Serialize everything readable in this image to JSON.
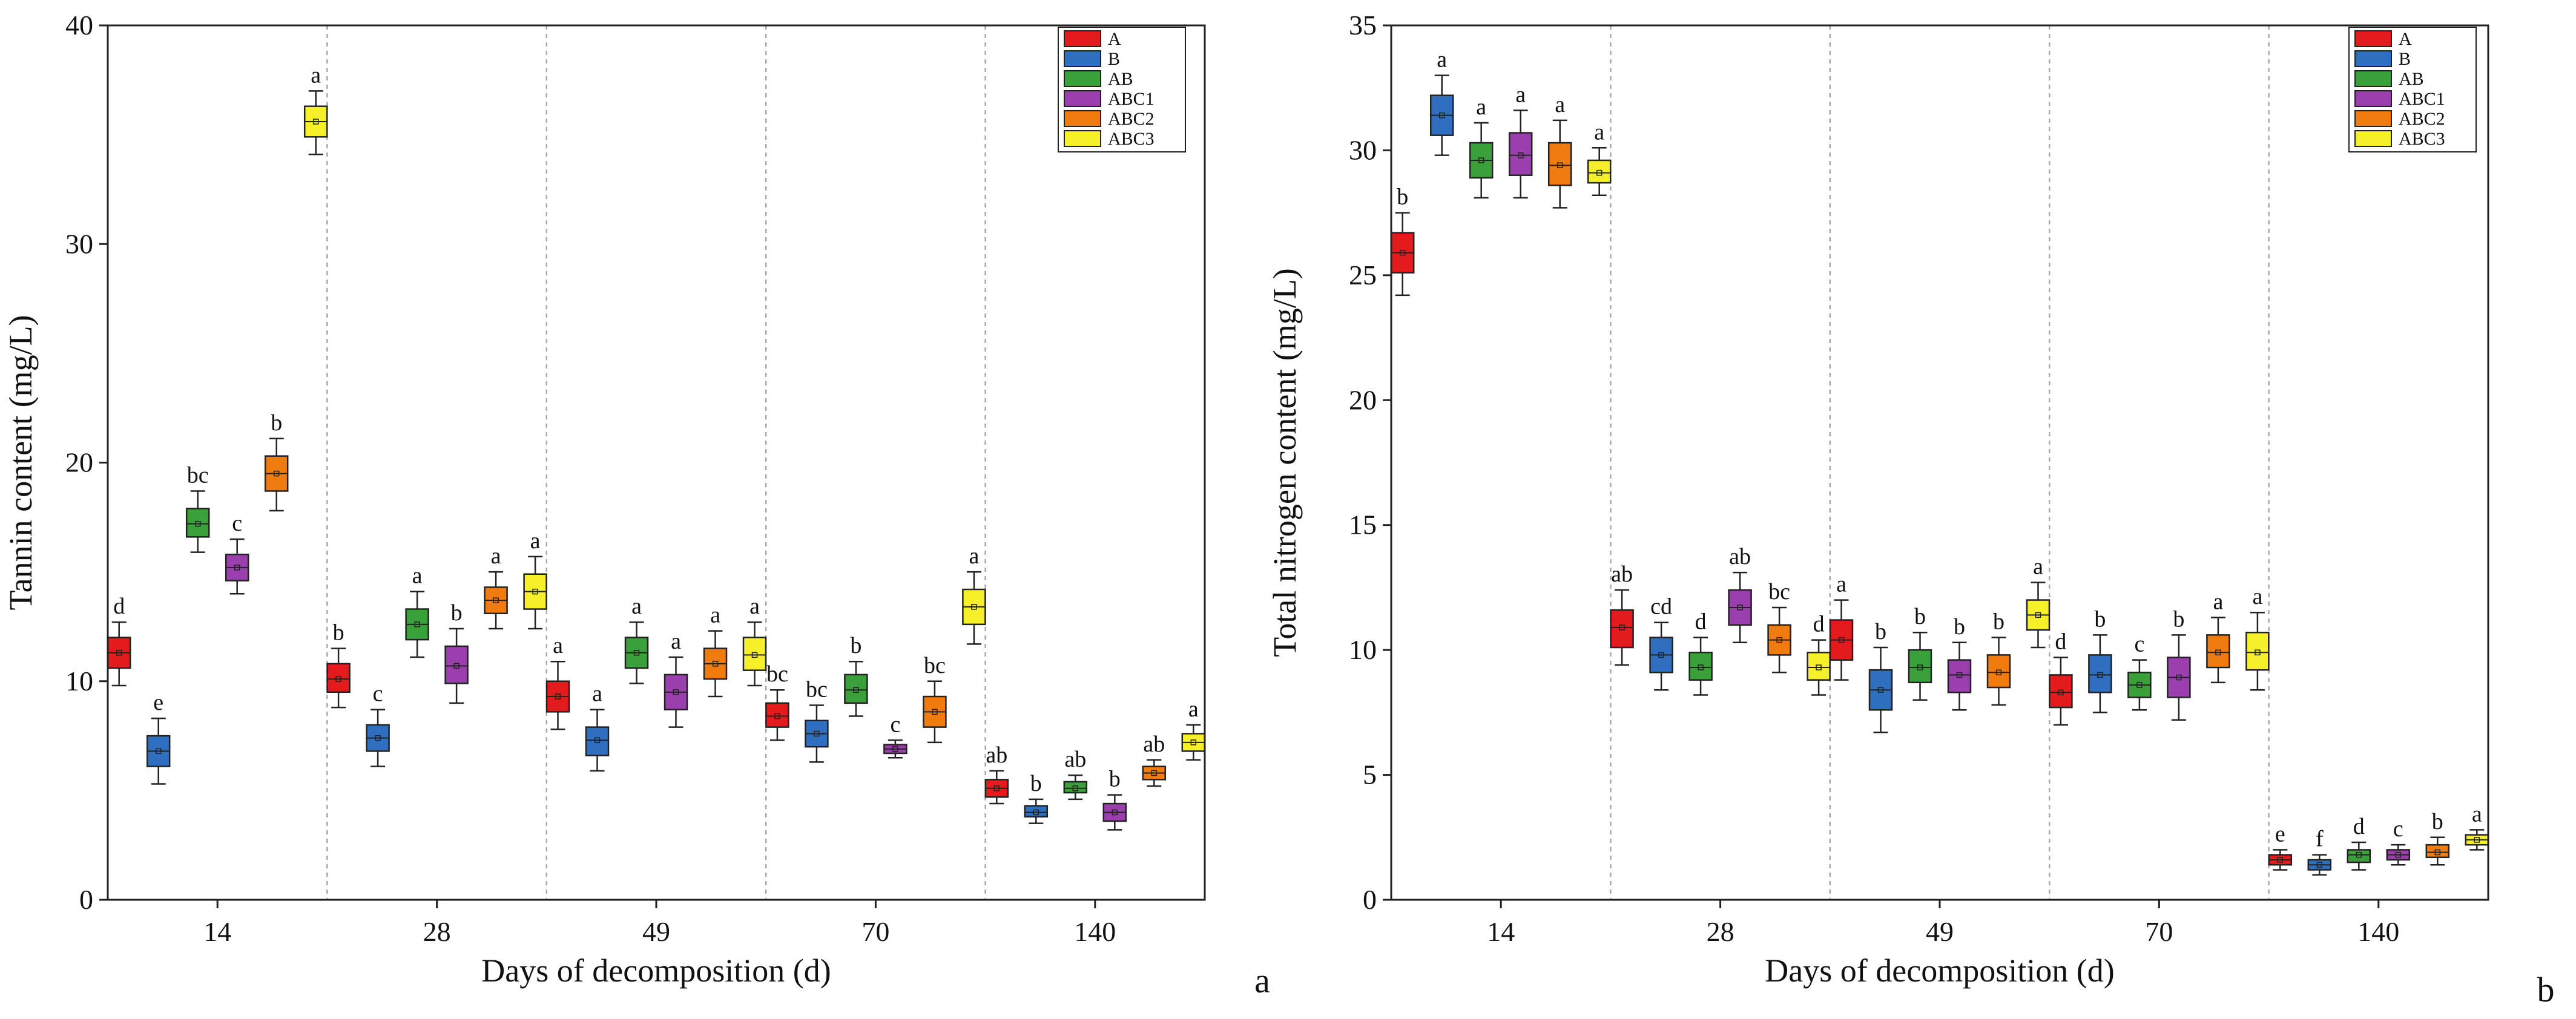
{
  "colors": {
    "A": "#e41a1c",
    "B": "#2f6fc0",
    "AB": "#3aa13a",
    "ABC1": "#9b3fae",
    "ABC2": "#f27b0f",
    "ABC3": "#f5f02a",
    "axis": "#222222",
    "separator": "#a8a8a8"
  },
  "chart_data": [
    {
      "type": "box",
      "panel_label": "a",
      "title": "",
      "xlabel": "Days of decomposition (d)",
      "ylabel": "Tannin content (mg/L)",
      "ylim": [
        0,
        40
      ],
      "yticks": [
        0,
        10,
        20,
        30,
        40
      ],
      "categories": [
        "14",
        "28",
        "49",
        "70",
        "140"
      ],
      "legend_position": "top-right",
      "series": [
        {
          "name": "A",
          "boxes": [
            {
              "whisker_low": 9.8,
              "q1": 10.6,
              "median": 11.3,
              "q3": 12.0,
              "whisker_high": 12.7,
              "label": "d"
            },
            {
              "whisker_low": 8.8,
              "q1": 9.5,
              "median": 10.1,
              "q3": 10.8,
              "whisker_high": 11.5,
              "label": "b"
            },
            {
              "whisker_low": 7.8,
              "q1": 8.6,
              "median": 9.3,
              "q3": 10.0,
              "whisker_high": 10.9,
              "label": "a"
            },
            {
              "whisker_low": 7.3,
              "q1": 7.9,
              "median": 8.4,
              "q3": 9.0,
              "whisker_high": 9.6,
              "label": "bc"
            },
            {
              "whisker_low": 4.4,
              "q1": 4.7,
              "median": 5.1,
              "q3": 5.5,
              "whisker_high": 5.9,
              "label": "ab"
            }
          ]
        },
        {
          "name": "B",
          "boxes": [
            {
              "whisker_low": 5.3,
              "q1": 6.1,
              "median": 6.8,
              "q3": 7.5,
              "whisker_high": 8.3,
              "label": "e"
            },
            {
              "whisker_low": 6.1,
              "q1": 6.8,
              "median": 7.4,
              "q3": 8.0,
              "whisker_high": 8.7,
              "label": "c"
            },
            {
              "whisker_low": 5.9,
              "q1": 6.6,
              "median": 7.3,
              "q3": 7.9,
              "whisker_high": 8.7,
              "label": "a"
            },
            {
              "whisker_low": 6.3,
              "q1": 7.0,
              "median": 7.6,
              "q3": 8.2,
              "whisker_high": 8.9,
              "label": "bc"
            },
            {
              "whisker_low": 3.5,
              "q1": 3.8,
              "median": 4.0,
              "q3": 4.3,
              "whisker_high": 4.6,
              "label": "b"
            }
          ]
        },
        {
          "name": "AB",
          "boxes": [
            {
              "whisker_low": 15.9,
              "q1": 16.6,
              "median": 17.2,
              "q3": 17.9,
              "whisker_high": 18.7,
              "label": "bc"
            },
            {
              "whisker_low": 11.1,
              "q1": 11.9,
              "median": 12.6,
              "q3": 13.3,
              "whisker_high": 14.1,
              "label": "a"
            },
            {
              "whisker_low": 9.9,
              "q1": 10.6,
              "median": 11.3,
              "q3": 12.0,
              "whisker_high": 12.7,
              "label": "a"
            },
            {
              "whisker_low": 8.4,
              "q1": 9.0,
              "median": 9.6,
              "q3": 10.3,
              "whisker_high": 10.9,
              "label": "b"
            },
            {
              "whisker_low": 4.6,
              "q1": 4.9,
              "median": 5.1,
              "q3": 5.4,
              "whisker_high": 5.7,
              "label": "ab"
            }
          ]
        },
        {
          "name": "ABC1",
          "boxes": [
            {
              "whisker_low": 14.0,
              "q1": 14.6,
              "median": 15.2,
              "q3": 15.8,
              "whisker_high": 16.5,
              "label": "c"
            },
            {
              "whisker_low": 9.0,
              "q1": 9.9,
              "median": 10.7,
              "q3": 11.6,
              "whisker_high": 12.4,
              "label": "b"
            },
            {
              "whisker_low": 7.9,
              "q1": 8.7,
              "median": 9.5,
              "q3": 10.3,
              "whisker_high": 11.1,
              "label": "a"
            },
            {
              "whisker_low": 6.5,
              "q1": 6.7,
              "median": 6.9,
              "q3": 7.1,
              "whisker_high": 7.3,
              "label": "c"
            },
            {
              "whisker_low": 3.2,
              "q1": 3.6,
              "median": 4.0,
              "q3": 4.4,
              "whisker_high": 4.8,
              "label": "b"
            }
          ]
        },
        {
          "name": "ABC2",
          "boxes": [
            {
              "whisker_low": 17.8,
              "q1": 18.7,
              "median": 19.5,
              "q3": 20.3,
              "whisker_high": 21.1,
              "label": "b"
            },
            {
              "whisker_low": 12.4,
              "q1": 13.1,
              "median": 13.7,
              "q3": 14.3,
              "whisker_high": 15.0,
              "label": "a"
            },
            {
              "whisker_low": 9.3,
              "q1": 10.1,
              "median": 10.8,
              "q3": 11.5,
              "whisker_high": 12.3,
              "label": "a"
            },
            {
              "whisker_low": 7.2,
              "q1": 7.9,
              "median": 8.6,
              "q3": 9.3,
              "whisker_high": 10.0,
              "label": "bc"
            },
            {
              "whisker_low": 5.2,
              "q1": 5.5,
              "median": 5.8,
              "q3": 6.1,
              "whisker_high": 6.4,
              "label": "ab"
            }
          ]
        },
        {
          "name": "ABC3",
          "boxes": [
            {
              "whisker_low": 34.1,
              "q1": 34.9,
              "median": 35.6,
              "q3": 36.3,
              "whisker_high": 37.0,
              "label": "a"
            },
            {
              "whisker_low": 12.4,
              "q1": 13.3,
              "median": 14.1,
              "q3": 14.9,
              "whisker_high": 15.7,
              "label": "a"
            },
            {
              "whisker_low": 9.8,
              "q1": 10.5,
              "median": 11.2,
              "q3": 12.0,
              "whisker_high": 12.7,
              "label": "a"
            },
            {
              "whisker_low": 11.7,
              "q1": 12.6,
              "median": 13.4,
              "q3": 14.2,
              "whisker_high": 15.0,
              "label": "a"
            },
            {
              "whisker_low": 6.4,
              "q1": 6.8,
              "median": 7.2,
              "q3": 7.6,
              "whisker_high": 8.0,
              "label": "a"
            }
          ]
        }
      ]
    },
    {
      "type": "box",
      "panel_label": "b",
      "title": "",
      "xlabel": "Days of decomposition (d)",
      "ylabel": "Total nitrogen content (mg/L)",
      "ylim": [
        0,
        35
      ],
      "yticks": [
        0,
        5,
        10,
        15,
        20,
        25,
        30,
        35
      ],
      "categories": [
        "14",
        "28",
        "49",
        "70",
        "140"
      ],
      "legend_position": "top-right",
      "series": [
        {
          "name": "A",
          "boxes": [
            {
              "whisker_low": 24.2,
              "q1": 25.1,
              "median": 25.9,
              "q3": 26.7,
              "whisker_high": 27.5,
              "label": "b"
            },
            {
              "whisker_low": 9.4,
              "q1": 10.1,
              "median": 10.9,
              "q3": 11.6,
              "whisker_high": 12.4,
              "label": "ab"
            },
            {
              "whisker_low": 8.8,
              "q1": 9.6,
              "median": 10.4,
              "q3": 11.2,
              "whisker_high": 12.0,
              "label": "a"
            },
            {
              "whisker_low": 7.0,
              "q1": 7.7,
              "median": 8.3,
              "q3": 9.0,
              "whisker_high": 9.7,
              "label": "d"
            },
            {
              "whisker_low": 1.2,
              "q1": 1.4,
              "median": 1.6,
              "q3": 1.8,
              "whisker_high": 2.0,
              "label": "e"
            }
          ]
        },
        {
          "name": "B",
          "boxes": [
            {
              "whisker_low": 29.8,
              "q1": 30.6,
              "median": 31.4,
              "q3": 32.2,
              "whisker_high": 33.0,
              "label": "a"
            },
            {
              "whisker_low": 8.4,
              "q1": 9.1,
              "median": 9.8,
              "q3": 10.5,
              "whisker_high": 11.1,
              "label": "cd"
            },
            {
              "whisker_low": 6.7,
              "q1": 7.6,
              "median": 8.4,
              "q3": 9.2,
              "whisker_high": 10.1,
              "label": "b"
            },
            {
              "whisker_low": 7.5,
              "q1": 8.3,
              "median": 9.0,
              "q3": 9.8,
              "whisker_high": 10.6,
              "label": "b"
            },
            {
              "whisker_low": 1.0,
              "q1": 1.2,
              "median": 1.4,
              "q3": 1.6,
              "whisker_high": 1.8,
              "label": "f"
            }
          ]
        },
        {
          "name": "AB",
          "boxes": [
            {
              "whisker_low": 28.1,
              "q1": 28.9,
              "median": 29.6,
              "q3": 30.3,
              "whisker_high": 31.1,
              "label": "a"
            },
            {
              "whisker_low": 8.2,
              "q1": 8.8,
              "median": 9.3,
              "q3": 9.9,
              "whisker_high": 10.5,
              "label": "d"
            },
            {
              "whisker_low": 8.0,
              "q1": 8.7,
              "median": 9.3,
              "q3": 10.0,
              "whisker_high": 10.7,
              "label": "b"
            },
            {
              "whisker_low": 7.6,
              "q1": 8.1,
              "median": 8.6,
              "q3": 9.1,
              "whisker_high": 9.6,
              "label": "c"
            },
            {
              "whisker_low": 1.2,
              "q1": 1.5,
              "median": 1.8,
              "q3": 2.0,
              "whisker_high": 2.3,
              "label": "d"
            }
          ]
        },
        {
          "name": "ABC1",
          "boxes": [
            {
              "whisker_low": 28.1,
              "q1": 29.0,
              "median": 29.8,
              "q3": 30.7,
              "whisker_high": 31.6,
              "label": "a"
            },
            {
              "whisker_low": 10.3,
              "q1": 11.0,
              "median": 11.7,
              "q3": 12.4,
              "whisker_high": 13.1,
              "label": "ab"
            },
            {
              "whisker_low": 7.6,
              "q1": 8.3,
              "median": 9.0,
              "q3": 9.6,
              "whisker_high": 10.3,
              "label": "b"
            },
            {
              "whisker_low": 7.2,
              "q1": 8.1,
              "median": 8.9,
              "q3": 9.7,
              "whisker_high": 10.6,
              "label": "b"
            },
            {
              "whisker_low": 1.4,
              "q1": 1.6,
              "median": 1.8,
              "q3": 2.0,
              "whisker_high": 2.2,
              "label": "c"
            }
          ]
        },
        {
          "name": "ABC2",
          "boxes": [
            {
              "whisker_low": 27.7,
              "q1": 28.6,
              "median": 29.4,
              "q3": 30.3,
              "whisker_high": 31.2,
              "label": "a"
            },
            {
              "whisker_low": 9.1,
              "q1": 9.8,
              "median": 10.4,
              "q3": 11.0,
              "whisker_high": 11.7,
              "label": "bc"
            },
            {
              "whisker_low": 7.8,
              "q1": 8.5,
              "median": 9.1,
              "q3": 9.8,
              "whisker_high": 10.5,
              "label": "b"
            },
            {
              "whisker_low": 8.7,
              "q1": 9.3,
              "median": 9.9,
              "q3": 10.6,
              "whisker_high": 11.3,
              "label": "a"
            },
            {
              "whisker_low": 1.4,
              "q1": 1.7,
              "median": 1.9,
              "q3": 2.2,
              "whisker_high": 2.5,
              "label": "b"
            }
          ]
        },
        {
          "name": "ABC3",
          "boxes": [
            {
              "whisker_low": 28.2,
              "q1": 28.7,
              "median": 29.1,
              "q3": 29.6,
              "whisker_high": 30.1,
              "label": "a"
            },
            {
              "whisker_low": 8.2,
              "q1": 8.8,
              "median": 9.3,
              "q3": 9.9,
              "whisker_high": 10.4,
              "label": "d"
            },
            {
              "whisker_low": 10.1,
              "q1": 10.8,
              "median": 11.4,
              "q3": 12.0,
              "whisker_high": 12.7,
              "label": "a"
            },
            {
              "whisker_low": 8.4,
              "q1": 9.2,
              "median": 9.9,
              "q3": 10.7,
              "whisker_high": 11.5,
              "label": "a"
            },
            {
              "whisker_low": 2.0,
              "q1": 2.2,
              "median": 2.4,
              "q3": 2.6,
              "whisker_high": 2.8,
              "label": "a"
            }
          ]
        }
      ]
    }
  ]
}
